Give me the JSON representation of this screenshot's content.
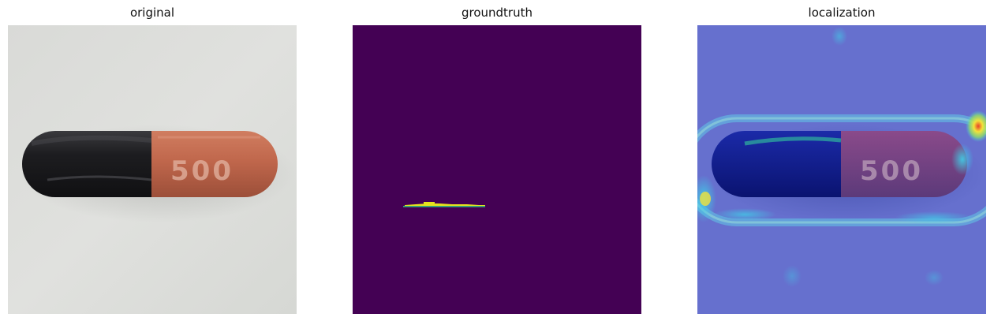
{
  "panels": [
    {
      "title": "original"
    },
    {
      "title": "groundtruth"
    },
    {
      "title": "localization"
    }
  ],
  "capsule": {
    "imprint": "500",
    "cap_color": "#1c1c1f",
    "body_color": "#c0674c",
    "imprint_color": "#e3b4a2"
  },
  "groundtruth": {
    "background_color": "#440154",
    "defect_color": "#e5e31d",
    "edge_color": "#35b779"
  },
  "localization": {
    "overlay_color": "#4a57d6",
    "hotspot_colors": [
      "#3fd0e8",
      "#8ee06a",
      "#f3e23a",
      "#e8402a"
    ]
  }
}
